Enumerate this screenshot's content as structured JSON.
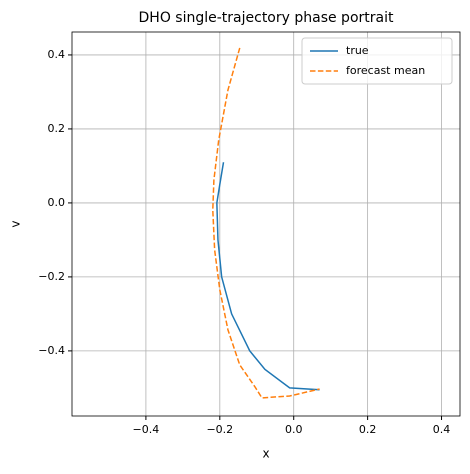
{
  "chart_data": {
    "type": "line",
    "title": "DHO single-trajectory phase portrait",
    "x_label": "x",
    "y_label": "v",
    "xlim": [
      -0.6,
      0.45
    ],
    "ylim": [
      -0.576,
      0.462
    ],
    "xticks": [
      {
        "value": -0.4,
        "label": "−0.4"
      },
      {
        "value": -0.2,
        "label": "−0.2"
      },
      {
        "value": 0,
        "label": "0.0"
      },
      0.2,
      0.4
    ],
    "yticks": [
      {
        "value": -0.4,
        "label": "−0.4"
      },
      {
        "value": -0.2,
        "label": "−0.2"
      },
      {
        "value": 0,
        "label": "0.0"
      },
      0.2,
      0.4
    ],
    "grid": true,
    "legend": "upper right",
    "series": [
      {
        "name": "true",
        "color": "#1f77b4",
        "dash": "solid",
        "x": [
          -0.19,
          -0.2,
          -0.208,
          -0.205,
          -0.195,
          -0.168,
          -0.119,
          -0.078,
          -0.011,
          0.07
        ],
        "values": [
          0.11,
          0.05,
          0.0,
          -0.1,
          -0.2,
          -0.3,
          -0.4,
          -0.45,
          -0.5,
          -0.505
        ]
      },
      {
        "name": "forecast mean",
        "color": "#ff7f0e",
        "dash": "dashed",
        "x": [
          -0.146,
          -0.178,
          -0.203,
          -0.216,
          -0.219,
          -0.214,
          -0.2,
          -0.178,
          -0.146,
          -0.105,
          -0.086,
          -0.011,
          0.07
        ],
        "values": [
          0.419,
          0.305,
          0.17,
          0.062,
          -0.019,
          -0.127,
          -0.235,
          -0.343,
          -0.438,
          -0.497,
          -0.527,
          -0.522,
          -0.503
        ]
      }
    ]
  }
}
